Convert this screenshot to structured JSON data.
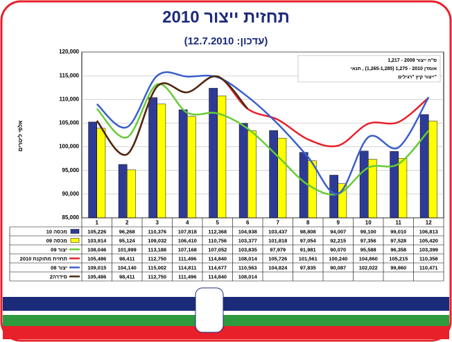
{
  "chart_data": {
    "type": "bar-line-table",
    "title": "תחזית ייצור 2010",
    "subtitle": "(עדכון: 12.7.2010)",
    "y_label": "אלפי ליטרים",
    "annotations": [
      "ס\"ה ייצור 2009 - 1,217",
      "אומדן 2010 - 1,275 (1,265-1,285) , תנאי",
      "ייצור קיץ \"רגילים\""
    ],
    "categories": [
      "1",
      "2",
      "3",
      "4",
      "5",
      "6",
      "7",
      "8",
      "9",
      "10",
      "11",
      "12"
    ],
    "ylim": [
      85000,
      120000
    ],
    "yticks": [
      {
        "value": 85000,
        "label": "85,000"
      },
      {
        "value": 90000,
        "label": "90,000"
      },
      {
        "value": 95000,
        "label": "95,000"
      },
      {
        "value": 100000,
        "label": "100,000"
      },
      {
        "value": 105000,
        "label": "105,000"
      },
      {
        "value": 110000,
        "label": "110,000"
      },
      {
        "value": 115000,
        "label": "115,000"
      },
      {
        "value": 120000,
        "label": "120,000"
      }
    ],
    "grid": true,
    "series": [
      {
        "name": "מכסה 10",
        "kind": "bar",
        "color": "#2e3b96",
        "values": [
          105226,
          96268,
          110376,
          107818,
          112368,
          104938,
          103437,
          98808,
          94007,
          99100,
          99010,
          106813
        ],
        "value_labels": [
          "105,226",
          "96,268",
          "110,376",
          "107,818",
          "112,368",
          "104,938",
          "103,437",
          "98,808",
          "94,007",
          "99,100",
          "99,010",
          "106,813"
        ]
      },
      {
        "name": "מכסה 09",
        "kind": "bar",
        "color": "#ffff00",
        "values": [
          103914,
          95124,
          109032,
          106410,
          110756,
          103377,
          101818,
          97054,
          92215,
          97356,
          97528,
          105420
        ],
        "value_labels": [
          "103,914",
          "95,124",
          "109,032",
          "106,410",
          "110,756",
          "103,377",
          "101,818",
          "97,054",
          "92,215",
          "97,356",
          "97,528",
          "105,420"
        ]
      },
      {
        "name": "יצור 09",
        "kind": "line",
        "color": "#66cc33",
        "values": [
          108046,
          101999,
          113188,
          107168,
          107052,
          103835,
          97979,
          91981,
          90070,
          95588,
          96358,
          103399
        ],
        "value_labels": [
          "108,046",
          "101,999",
          "113,188",
          "107,168",
          "107,052",
          "103,835",
          "97,979",
          "91,981",
          "90,070",
          "95,588",
          "96,358",
          "103,399"
        ]
      },
      {
        "name": "תחזית מתוקנת 2010",
        "kind": "line",
        "color": "#e8202a",
        "values": [
          105486,
          98411,
          112750,
          111496,
          114840,
          108014,
          105726,
          101561,
          100240,
          104860,
          105215,
          110358
        ],
        "value_labels": [
          "105,486",
          "98,411",
          "112,750",
          "111,496",
          "114,840",
          "108,014",
          "105,726",
          "101,561",
          "100,240",
          "104,860",
          "105,215",
          "110,358"
        ]
      },
      {
        "name": "יצור 08",
        "kind": "line",
        "color": "#3a5fc8",
        "values": [
          109015,
          104140,
          115002,
          114811,
          114677,
          110563,
          104824,
          97835,
          90087,
          102022,
          99860,
          110471
        ],
        "value_labels": [
          "109,015",
          "104,140",
          "115,002",
          "114,811",
          "114,677",
          "110,563",
          "104,824",
          "97,835",
          "90,087",
          "102,022",
          "99,860",
          "110,471"
        ]
      },
      {
        "name": "סידרה2",
        "kind": "line",
        "color": "#4a2a10",
        "values": [
          105486,
          98411,
          112750,
          111496,
          114840,
          108014,
          null,
          null,
          null,
          null,
          null,
          null
        ],
        "value_labels": [
          "105,486",
          "98,411",
          "112,750",
          "111,496",
          "114,840",
          "108,014",
          null,
          null,
          null,
          null,
          null,
          null
        ]
      }
    ]
  }
}
